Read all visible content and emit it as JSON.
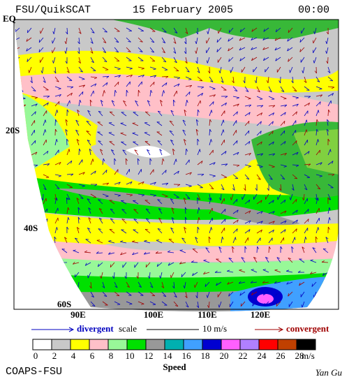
{
  "header": {
    "source": "FSU/QuikSCAT",
    "date": "15 February 2005",
    "time": "00:00"
  },
  "map": {
    "lat_labels": [
      "EQ",
      "20S",
      "40S",
      "60S"
    ],
    "lon_labels": [
      "90E",
      "100E",
      "110E",
      "120E"
    ]
  },
  "vector_legend": {
    "divergent": "divergent",
    "scale": "scale",
    "magnitude": "10 m/s",
    "convergent": "convergent"
  },
  "colorbar": {
    "ticks": [
      0,
      2,
      4,
      6,
      8,
      10,
      12,
      14,
      16,
      18,
      20,
      22,
      24,
      26,
      28
    ],
    "colors": [
      "#ffffff",
      "#c8c8c8",
      "#ffff00",
      "#ffc0c8",
      "#98f898",
      "#00e000",
      "#989898",
      "#00b0b0",
      "#40a0ff",
      "#0000d0",
      "#ff60ff",
      "#b080ff",
      "#ff0000",
      "#c04000",
      "#000000"
    ],
    "unit": "m/s",
    "label": "Speed"
  },
  "footer": {
    "left": "COAPS-FSU",
    "right": "Yan Gu"
  }
}
